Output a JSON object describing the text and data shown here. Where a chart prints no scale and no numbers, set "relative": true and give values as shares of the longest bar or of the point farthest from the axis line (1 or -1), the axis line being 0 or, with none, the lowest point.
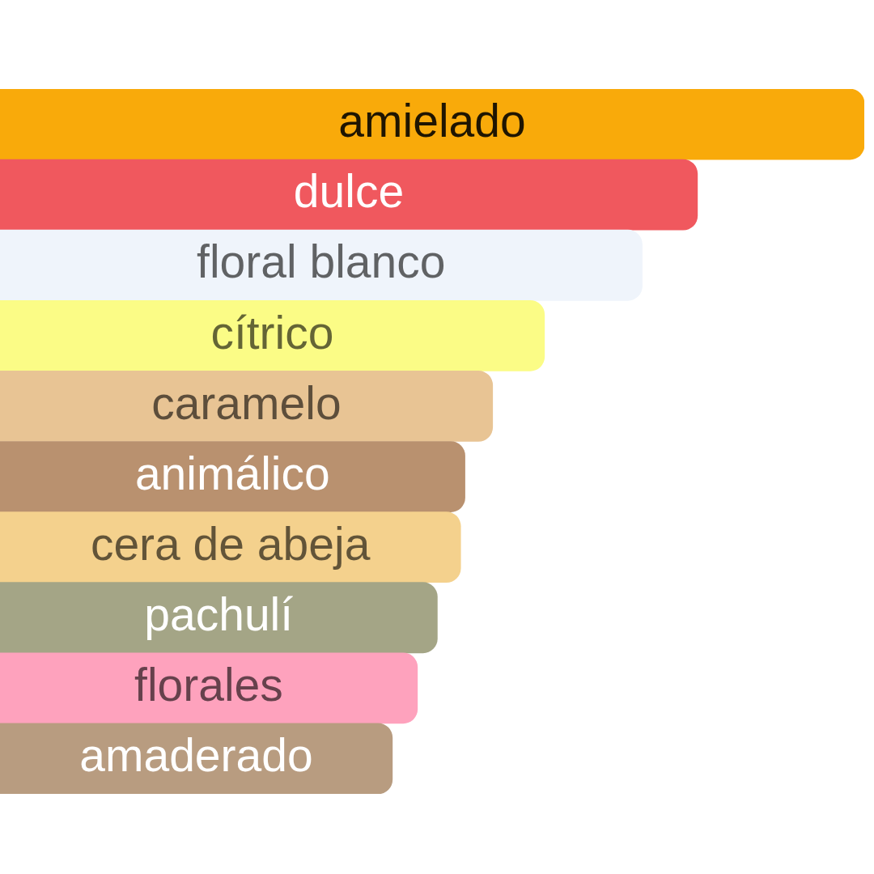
{
  "chart_data": {
    "type": "bar",
    "orientation": "horizontal",
    "relative": true,
    "categories": [
      "amielado",
      "dulce",
      "floral blanco",
      "cítrico",
      "caramelo",
      "animálico",
      "cera de abeja",
      "pachulí",
      "florales",
      "amaderado"
    ],
    "values": [
      1,
      0.807,
      0.743,
      0.63,
      0.57,
      0.538,
      0.533,
      0.506,
      0.483,
      0.454
    ],
    "colors": [
      "#f9aa0a",
      "#f0585e",
      "#eff4fb",
      "#fbfc86",
      "#e8c494",
      "#b9916f",
      "#f4d18d",
      "#a4a586",
      "#fea2bd",
      "#b89c80"
    ]
  }
}
